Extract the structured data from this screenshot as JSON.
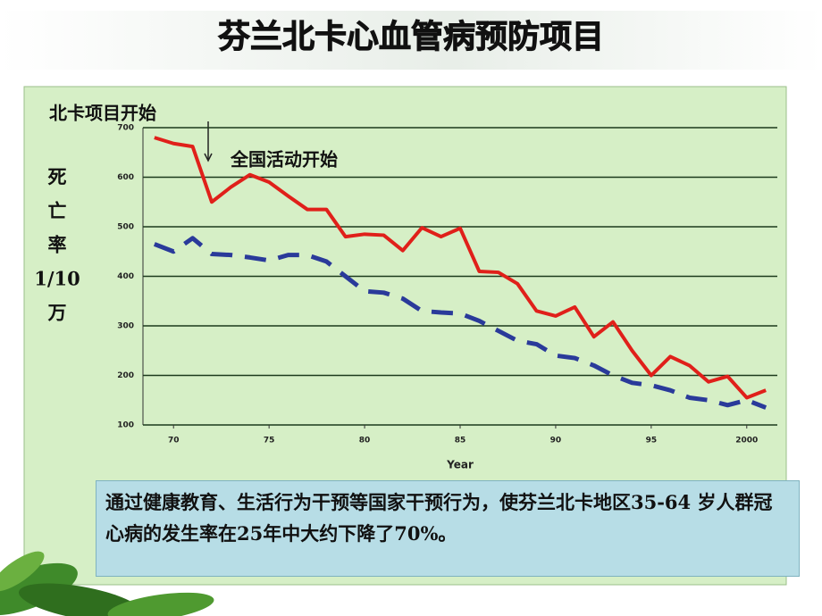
{
  "chart_data": {
    "type": "line",
    "title": "芬兰北卡心血管病预防项目",
    "ylabel_lines": [
      "死",
      "亡",
      "率",
      "1/10",
      "万"
    ],
    "xlabel": "Year",
    "annotations": [
      "北卡项目开始",
      "全国活动开始"
    ],
    "caption": "通过健康教育、生活行为干预等国家干预行为，使芬兰北卡地区35-64 岁人群冠心病的发生率在25年中大约下降了70%。",
    "x": [
      1969,
      1970,
      1971,
      1972,
      1973,
      1974,
      1975,
      1976,
      1977,
      1978,
      1979,
      1980,
      1981,
      1982,
      1983,
      1984,
      1985,
      1986,
      1987,
      1988,
      1989,
      1990,
      1991,
      1992,
      1993,
      1994,
      1995,
      1996,
      1997,
      1998,
      1999,
      2000,
      2001
    ],
    "series": [
      {
        "color": "#e0201a",
        "dashed": false,
        "values": [
          680,
          668,
          662,
          550,
          580,
          605,
          590,
          562,
          535,
          535,
          480,
          485,
          483,
          452,
          498,
          480,
          497,
          410,
          408,
          385,
          330,
          320,
          338,
          278,
          308,
          250,
          200,
          238,
          220,
          187,
          198,
          155,
          170
        ]
      },
      {
        "color": "#2a3a9a",
        "dashed": true,
        "values": [
          465,
          450,
          477,
          445,
          443,
          438,
          432,
          443,
          443,
          430,
          400,
          370,
          367,
          355,
          330,
          327,
          325,
          310,
          290,
          270,
          263,
          240,
          235,
          220,
          200,
          185,
          180,
          170,
          155,
          150,
          140,
          150,
          135
        ]
      }
    ],
    "xlim": [
      1968.4,
      2001.6
    ],
    "ylim": [
      100,
      700
    ],
    "xticks": [
      {
        "value": 1970,
        "label": "70"
      },
      {
        "value": 1975,
        "label": "75"
      },
      {
        "value": 1980,
        "label": "80"
      },
      {
        "value": 1985,
        "label": "85"
      },
      {
        "value": 1990,
        "label": "90"
      },
      {
        "value": 1995,
        "label": "95"
      },
      2000
    ],
    "yticks": [
      100,
      200,
      300,
      400,
      500,
      600,
      700
    ],
    "grid": true
  }
}
